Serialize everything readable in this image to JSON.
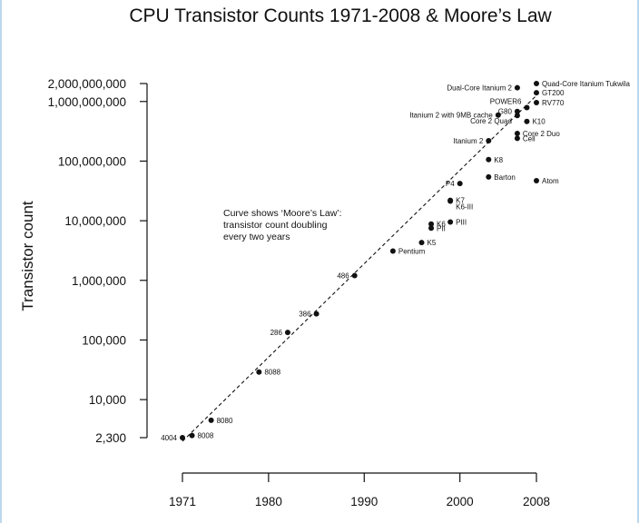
{
  "chart_data": {
    "type": "scatter",
    "title": "CPU Transistor Counts 1971-2008 & Moore’s Law",
    "xlabel": "",
    "ylabel": "Transistor count",
    "xscale": "linear",
    "yscale": "log",
    "xlim": [
      1971,
      2008
    ],
    "ylim": [
      2300,
      2000000000
    ],
    "x_ticks": [
      1971,
      1980,
      1990,
      2000,
      2008
    ],
    "y_ticks": [
      {
        "value": 2300,
        "label": "2,300"
      },
      {
        "value": 10000,
        "label": "10,000"
      },
      {
        "value": 100000,
        "label": "100,000"
      },
      {
        "value": 1000000,
        "label": "1,000,000"
      },
      {
        "value": 10000000,
        "label": "10,000,000"
      },
      {
        "value": 100000000,
        "label": "100,000,000"
      },
      {
        "value": 1000000000,
        "label": "1,000,000,000"
      },
      {
        "value": 2000000000,
        "label": "2,000,000,000"
      }
    ],
    "grid": false,
    "annotation": [
      "Curve shows ‘Moore’s Law’:",
      "transistor count doubling",
      "every two years"
    ],
    "trend_line": {
      "style": "dashed",
      "x": [
        1971,
        2008
      ],
      "y": [
        2000,
        1260000000
      ]
    },
    "points": [
      {
        "label": "4004",
        "x": 1971,
        "y": 2300,
        "anchor": "left"
      },
      {
        "label": "8008",
        "x": 1972,
        "y": 2500,
        "anchor": "right"
      },
      {
        "label": "8080",
        "x": 1974,
        "y": 4500,
        "anchor": "right"
      },
      {
        "label": "8088",
        "x": 1979,
        "y": 29000,
        "anchor": "right"
      },
      {
        "label": "286",
        "x": 1982,
        "y": 134000,
        "anchor": "left"
      },
      {
        "label": "386",
        "x": 1985,
        "y": 275000,
        "anchor": "left"
      },
      {
        "label": "486",
        "x": 1989,
        "y": 1200000,
        "anchor": "left"
      },
      {
        "label": "Pentium",
        "x": 1993,
        "y": 3100000,
        "anchor": "right"
      },
      {
        "label": "K5",
        "x": 1996,
        "y": 4300000,
        "anchor": "right"
      },
      {
        "label": "K6",
        "x": 1997,
        "y": 8800000,
        "anchor": "right"
      },
      {
        "label": "PII",
        "x": 1997,
        "y": 7500000,
        "anchor": "right"
      },
      {
        "label": "PIII",
        "x": 1999,
        "y": 9500000,
        "anchor": "right"
      },
      {
        "label": "K7",
        "x": 1999,
        "y": 22000000,
        "anchor": "right"
      },
      {
        "label": "K6-III",
        "x": 1999,
        "y": 21300000,
        "anchor": "right-low"
      },
      {
        "label": "P4",
        "x": 2000,
        "y": 42000000,
        "anchor": "left"
      },
      {
        "label": "Barton",
        "x": 2003,
        "y": 54300000,
        "anchor": "right"
      },
      {
        "label": "K8",
        "x": 2003,
        "y": 105900000,
        "anchor": "right"
      },
      {
        "label": "Itanium 2",
        "x": 2003,
        "y": 220000000,
        "anchor": "left"
      },
      {
        "label": "Itanium 2 with 9MB cache",
        "x": 2004,
        "y": 592000000,
        "anchor": "left"
      },
      {
        "label": "Core 2 Duo",
        "x": 2006,
        "y": 291000000,
        "anchor": "right"
      },
      {
        "label": "Cell",
        "x": 2006,
        "y": 241000000,
        "anchor": "right"
      },
      {
        "label": "Core 2 Quad",
        "x": 2006,
        "y": 582000000,
        "anchor": "left-low"
      },
      {
        "label": "G80",
        "x": 2006,
        "y": 681000000,
        "anchor": "left"
      },
      {
        "label": "Dual-Core Itanium 2",
        "x": 2006,
        "y": 1700000000,
        "anchor": "left"
      },
      {
        "label": "POWER6",
        "x": 2007,
        "y": 789000000,
        "anchor": "left-high"
      },
      {
        "label": "K10",
        "x": 2007,
        "y": 463000000,
        "anchor": "right"
      },
      {
        "label": "Atom",
        "x": 2008,
        "y": 47000000,
        "anchor": "right"
      },
      {
        "label": "RV770",
        "x": 2008,
        "y": 956000000,
        "anchor": "right"
      },
      {
        "label": "GT200",
        "x": 2008,
        "y": 1400000000,
        "anchor": "right"
      },
      {
        "label": "Quad-Core Itanium Tukwila",
        "x": 2008,
        "y": 2000000000,
        "anchor": "right"
      }
    ]
  }
}
